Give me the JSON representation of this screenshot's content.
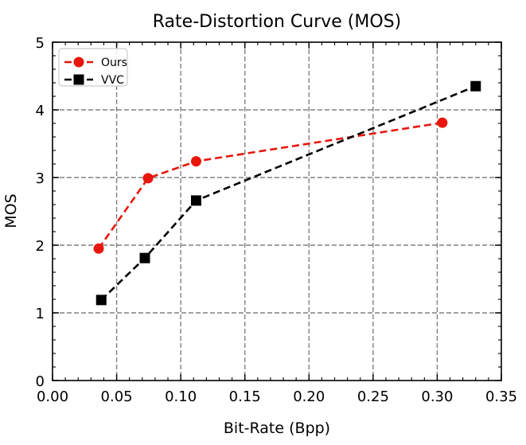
{
  "chart_data": {
    "type": "line",
    "title": "Rate-Distortion Curve (MOS)",
    "xlabel": "Bit-Rate (Bpp)",
    "ylabel": "MOS",
    "xlim": [
      0.0,
      0.35
    ],
    "ylim": [
      0,
      5
    ],
    "xticks": [
      0.0,
      0.05,
      0.1,
      0.15,
      0.2,
      0.25,
      0.3,
      0.35
    ],
    "xtick_labels": [
      "0.00",
      "0.05",
      "0.10",
      "0.15",
      "0.20",
      "0.25",
      "0.30",
      "0.35"
    ],
    "yticks": [
      0,
      1,
      2,
      3,
      4,
      5
    ],
    "ytick_labels": [
      "0",
      "1",
      "2",
      "3",
      "4",
      "5"
    ],
    "grid": true,
    "legend_position": "top-left",
    "series": [
      {
        "name": "Ours",
        "color": "#e8160c",
        "marker": "circle",
        "linestyle": "dashed",
        "x": [
          0.036,
          0.0745,
          0.112,
          0.304
        ],
        "y": [
          1.95,
          2.99,
          3.24,
          3.81
        ]
      },
      {
        "name": "VVC",
        "color": "#000000",
        "marker": "square",
        "linestyle": "dashed",
        "x": [
          0.038,
          0.072,
          0.112,
          0.33
        ],
        "y": [
          1.19,
          1.81,
          2.66,
          4.35
        ]
      }
    ]
  }
}
